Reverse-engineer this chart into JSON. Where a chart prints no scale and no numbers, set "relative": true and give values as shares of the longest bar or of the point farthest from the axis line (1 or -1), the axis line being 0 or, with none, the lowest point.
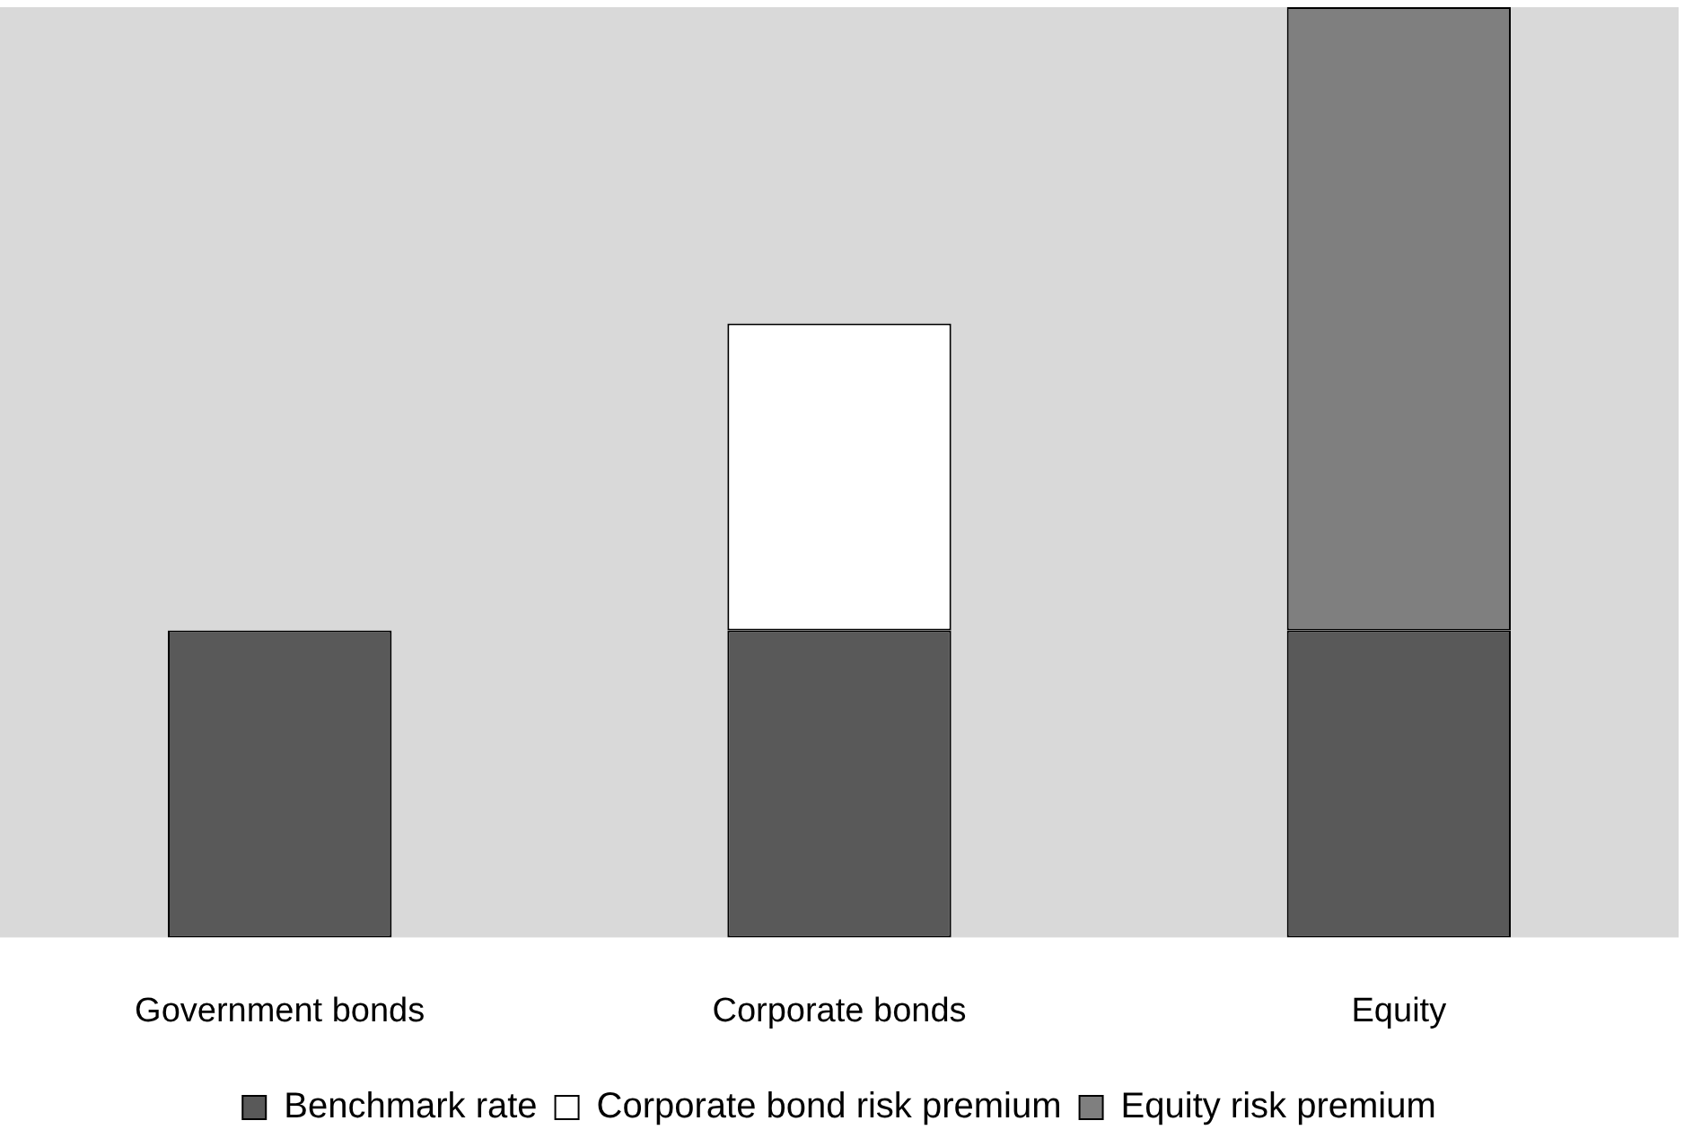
{
  "chart_data": {
    "type": "bar",
    "stacked": true,
    "relative": true,
    "legend": "bottom",
    "categories": [
      "Government bonds",
      "Corporate bonds",
      "Equity"
    ],
    "series": [
      {
        "name": "Benchmark rate",
        "color": "#595959",
        "values": [
          0.33,
          0.33,
          0.33
        ]
      },
      {
        "name": "Corporate bond risk premium",
        "color": "#ffffff",
        "values": [
          null,
          0.33,
          null
        ]
      },
      {
        "name": "Equity risk premium",
        "color": "#7f7f7f",
        "values": [
          null,
          null,
          0.67
        ]
      }
    ]
  }
}
